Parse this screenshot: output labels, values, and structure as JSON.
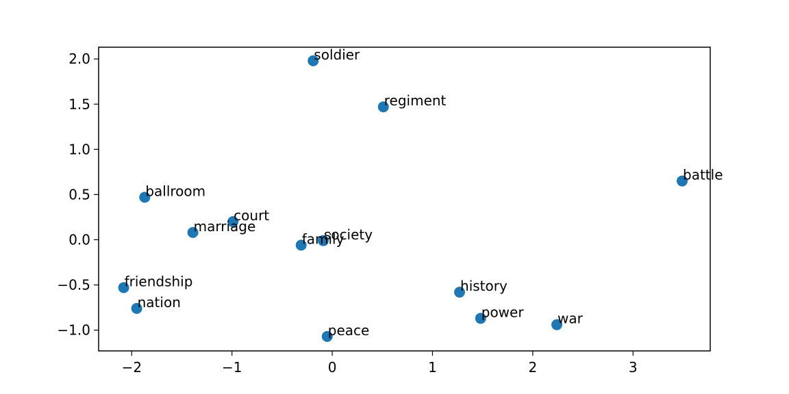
{
  "chart_data": {
    "type": "scatter",
    "title": "",
    "xlabel": "",
    "ylabel": "",
    "xlim": [
      -2.33,
      3.77
    ],
    "ylim": [
      -1.23,
      2.13
    ],
    "x_ticks": [
      -2,
      -1,
      0,
      1,
      2,
      3
    ],
    "x_tick_labels": [
      "−2",
      "−1",
      "0",
      "1",
      "2",
      "3"
    ],
    "y_ticks": [
      -1.0,
      -0.5,
      0.0,
      0.5,
      1.0,
      1.5,
      2.0
    ],
    "y_tick_labels": [
      "−1.0",
      "−0.5",
      "0.0",
      "0.5",
      "1.0",
      "1.5",
      "2.0"
    ],
    "grid": false,
    "marker_color": "#1f77b4",
    "points": [
      {
        "label": "soldier",
        "x": -0.19,
        "y": 1.98
      },
      {
        "label": "regiment",
        "x": 0.51,
        "y": 1.47
      },
      {
        "label": "battle",
        "x": 3.49,
        "y": 0.65
      },
      {
        "label": "ballroom",
        "x": -1.87,
        "y": 0.47
      },
      {
        "label": "court",
        "x": -0.99,
        "y": 0.2
      },
      {
        "label": "marriage",
        "x": -1.39,
        "y": 0.08
      },
      {
        "label": "family",
        "x": -0.31,
        "y": -0.06
      },
      {
        "label": "society",
        "x": -0.09,
        "y": -0.01
      },
      {
        "label": "friendship",
        "x": -2.08,
        "y": -0.53
      },
      {
        "label": "nation",
        "x": -1.95,
        "y": -0.76
      },
      {
        "label": "history",
        "x": 1.27,
        "y": -0.58
      },
      {
        "label": "power",
        "x": 1.48,
        "y": -0.87
      },
      {
        "label": "war",
        "x": 2.24,
        "y": -0.94
      },
      {
        "label": "peace",
        "x": -0.05,
        "y": -1.07
      }
    ]
  }
}
